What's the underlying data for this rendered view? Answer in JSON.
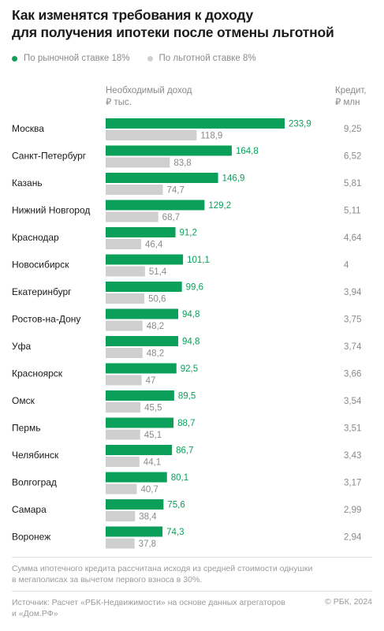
{
  "title_line1": "Как изменятся требования к доходу",
  "title_line2": "для получения ипотеки после отмены льготной",
  "legend": {
    "market": "По рыночной ставке 18%",
    "preferential": "По льготной ставке 8%"
  },
  "colors": {
    "market": "#0aa05a",
    "preferential": "#cfcfcf",
    "label_market": "#0aa05a",
    "label_pref": "#8a8a8a"
  },
  "header": {
    "income_line1": "Необходимый доход",
    "income_line2": "₽ тыс.",
    "credit_line1": "Кредит,",
    "credit_line2": "₽ млн"
  },
  "chart_data": {
    "type": "bar",
    "orientation": "horizontal",
    "categories": [
      "Москва",
      "Санкт-Петербург",
      "Казань",
      "Нижний Новгород",
      "Краснодар",
      "Новосибирск",
      "Екатеринбург",
      "Ростов-на-Дону",
      "Уфа",
      "Красноярск",
      "Омск",
      "Пермь",
      "Челябинск",
      "Волгоград",
      "Самара",
      "Воронеж"
    ],
    "series": [
      {
        "name": "По рыночной ставке 18%",
        "values": [
          233.9,
          164.8,
          146.9,
          129.2,
          91.2,
          101.1,
          99.6,
          94.8,
          94.8,
          92.5,
          89.5,
          88.7,
          86.7,
          80.1,
          75.6,
          74.3
        ]
      },
      {
        "name": "По льготной ставке 8%",
        "values": [
          118.9,
          83.8,
          74.7,
          68.7,
          46.4,
          51.4,
          50.6,
          48.2,
          48.2,
          47,
          45.5,
          45.1,
          44.1,
          40.7,
          38.4,
          37.8
        ]
      }
    ],
    "market_labels": [
      "233,9",
      "164,8",
      "146,9",
      "129,2",
      "91,2",
      "101,1",
      "99,6",
      "94,8",
      "94,8",
      "92,5",
      "89,5",
      "88,7",
      "86,7",
      "80,1",
      "75,6",
      "74,3"
    ],
    "pref_labels": [
      "118,9",
      "83,8",
      "74,7",
      "68,7",
      "46,4",
      "51,4",
      "50,6",
      "48,2",
      "48,2",
      "47",
      "45,5",
      "45,1",
      "44,1",
      "40,7",
      "38,4",
      "37,8"
    ],
    "credit": [
      "9,25",
      "6,52",
      "5,81",
      "5,11",
      "4,64",
      "4",
      "3,94",
      "3,75",
      "3,74",
      "3,66",
      "3,54",
      "3,51",
      "3,43",
      "3,17",
      "2,99",
      "2,94"
    ],
    "xlim": [
      0,
      233.9
    ]
  },
  "note_line1": "Сумма ипотечного кредита рассчитана исходя из средней стоимости однушки",
  "note_line2": "в мегаполисах за вычетом первого взноса в 30%.",
  "source_line1": "Источник: Расчет «РБК-Недвижимости» на основе данных агрегаторов",
  "source_line2": "и «Дом.РФ»",
  "copyright": "© РБК, 2024"
}
